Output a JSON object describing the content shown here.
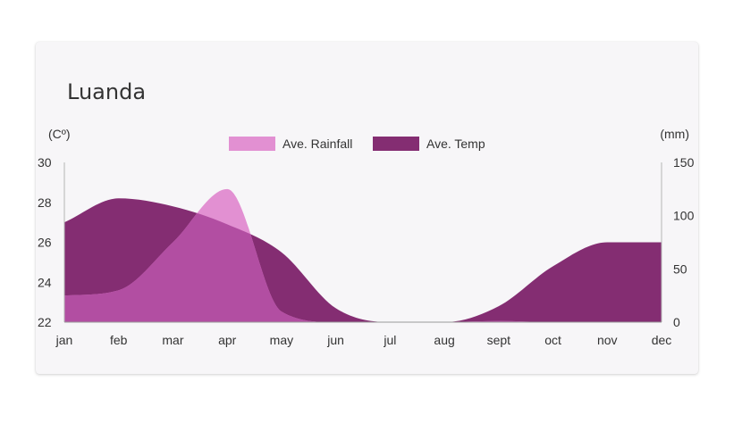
{
  "chart_data": {
    "type": "area",
    "title": "Luanda",
    "categories": [
      "jan",
      "feb",
      "mar",
      "apr",
      "may",
      "jun",
      "jul",
      "aug",
      "sept",
      "oct",
      "nov",
      "dec"
    ],
    "y_left": {
      "label": "(Cº)",
      "lim": [
        22,
        30
      ],
      "ticks": [
        "22",
        "24",
        "26",
        "28",
        "30"
      ]
    },
    "y_right": {
      "label": "(mm)",
      "lim": [
        0,
        150
      ],
      "ticks": [
        "0",
        "50",
        "100",
        "150"
      ]
    },
    "series": [
      {
        "name": "Ave. Rainfall",
        "axis": "right",
        "color": "#e290d2",
        "values": [
          25,
          30,
          75,
          125,
          10,
          0,
          0,
          0,
          1,
          0,
          0,
          0
        ]
      },
      {
        "name": "Ave. Temp",
        "axis": "left",
        "color": "#842d72",
        "values": [
          27,
          28.2,
          27.8,
          26.9,
          25.5,
          22.7,
          22,
          22,
          22.8,
          24.8,
          26.0,
          26.0
        ]
      }
    ],
    "overlap_color": "#b24ea2",
    "legend_position": "top-center",
    "grid": false
  }
}
